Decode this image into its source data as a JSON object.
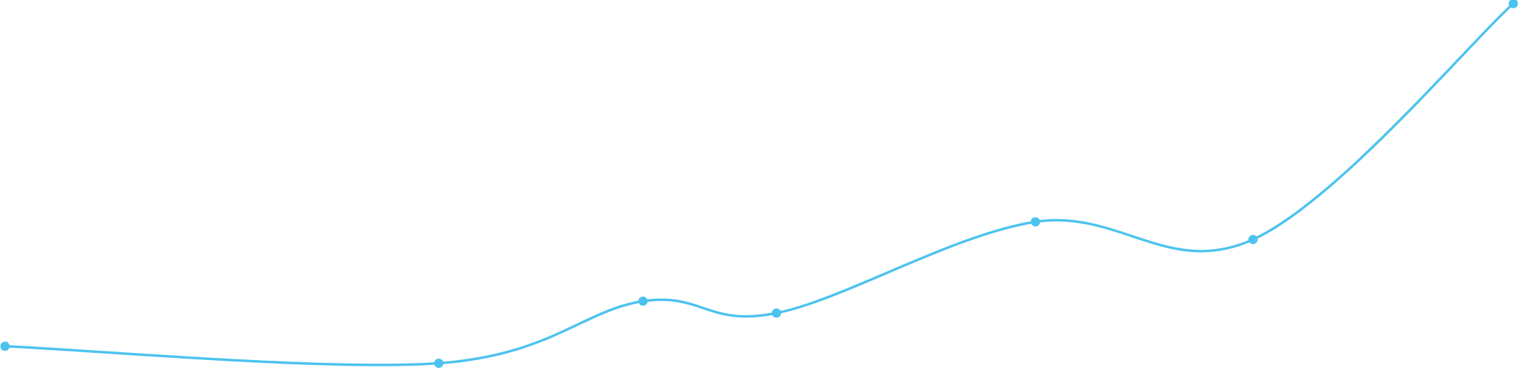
{
  "chart_data": {
    "type": "line",
    "title": "",
    "xlabel": "",
    "ylabel": "",
    "grid": false,
    "legend": "none",
    "smooth": true,
    "x": [
      0,
      3.25,
      4.78,
      5.78,
      7.72,
      9.35,
      11.3
    ],
    "ylim": [
      0,
      100
    ],
    "series": [
      {
        "color": "#4cc3ee",
        "values": [
          5.0,
          0.3,
          17.5,
          14.2,
          39.5,
          34.6,
          100.0
        ]
      }
    ]
  }
}
